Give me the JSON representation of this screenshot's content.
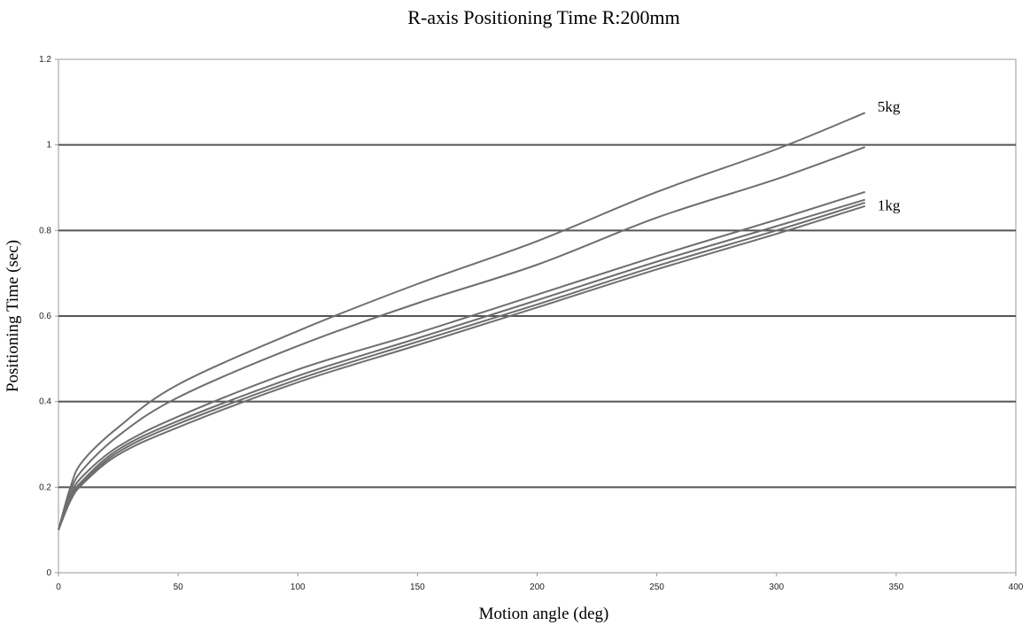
{
  "chart_data": {
    "type": "line",
    "title": "R-axis Positioning Time R:200mm",
    "xlabel": "Motion angle  (deg)",
    "ylabel": "Positioning Time (sec)",
    "xlim": [
      0,
      400
    ],
    "ylim": [
      0,
      1.2
    ],
    "xticks": [
      0,
      50,
      100,
      150,
      200,
      250,
      300,
      350,
      400
    ],
    "yticks": [
      0,
      0.2,
      0.4,
      0.6,
      0.8,
      1,
      1.2
    ],
    "xtick_labels": [
      "0",
      "50",
      "100",
      "150",
      "200",
      "250",
      "300",
      "350",
      "400"
    ],
    "ytick_labels": [
      "0",
      "0.2",
      "0.4",
      "0.6",
      "0.8",
      "1",
      "1.2"
    ],
    "grid": "horizontal",
    "line_color": "#6e6e6e",
    "annotations": [
      {
        "text": "5kg",
        "x": 340,
        "y": 1.09
      },
      {
        "text": "1kg",
        "x": 340,
        "y": 0.86
      }
    ],
    "series": [
      {
        "x": [
          0,
          5,
          10,
          25,
          50,
          100,
          150,
          200,
          250,
          300,
          337
        ],
        "y": [
          0.1,
          0.2,
          0.26,
          0.34,
          0.44,
          0.565,
          0.675,
          0.775,
          0.89,
          0.99,
          1.075
        ]
      },
      {
        "x": [
          0,
          5,
          10,
          25,
          50,
          100,
          150,
          200,
          250,
          300,
          337
        ],
        "y": [
          0.1,
          0.19,
          0.24,
          0.32,
          0.41,
          0.53,
          0.63,
          0.72,
          0.83,
          0.92,
          0.995
        ]
      },
      {
        "x": [
          0,
          5,
          10,
          25,
          50,
          100,
          150,
          200,
          250,
          300,
          337
        ],
        "y": [
          0.1,
          0.18,
          0.225,
          0.295,
          0.365,
          0.475,
          0.56,
          0.65,
          0.74,
          0.825,
          0.89
        ]
      },
      {
        "x": [
          0,
          5,
          10,
          25,
          50,
          100,
          150,
          200,
          250,
          300,
          337
        ],
        "y": [
          0.1,
          0.175,
          0.215,
          0.288,
          0.355,
          0.46,
          0.548,
          0.637,
          0.727,
          0.81,
          0.872
        ]
      },
      {
        "x": [
          0,
          5,
          10,
          25,
          50,
          100,
          150,
          200,
          250,
          300,
          337
        ],
        "y": [
          0.1,
          0.17,
          0.21,
          0.282,
          0.348,
          0.452,
          0.54,
          0.627,
          0.717,
          0.8,
          0.865
        ]
      },
      {
        "x": [
          0,
          5,
          10,
          25,
          50,
          100,
          150,
          200,
          250,
          300,
          337
        ],
        "y": [
          0.1,
          0.168,
          0.207,
          0.276,
          0.34,
          0.445,
          0.532,
          0.62,
          0.709,
          0.792,
          0.857
        ]
      }
    ]
  }
}
